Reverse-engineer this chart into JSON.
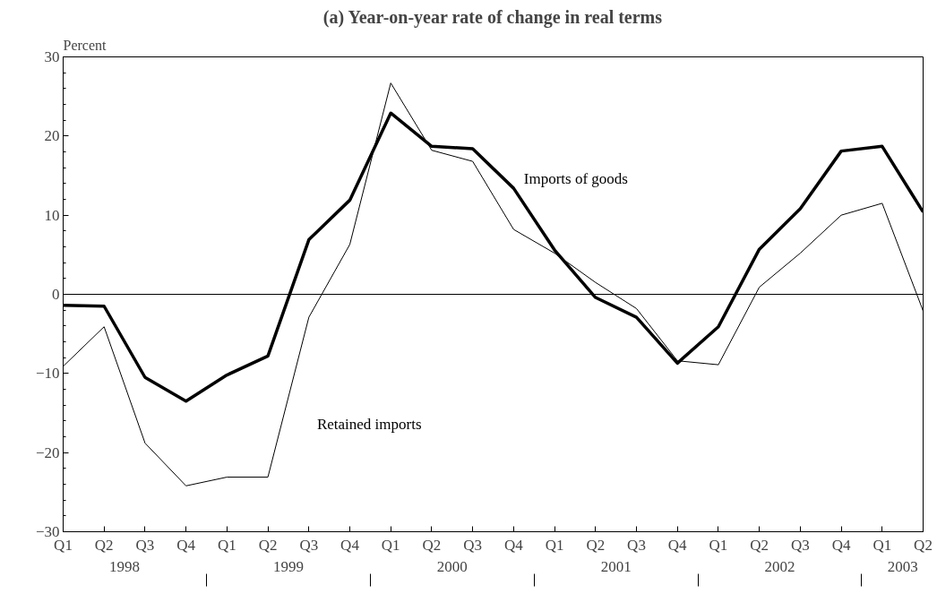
{
  "chart_data": {
    "type": "line",
    "title": "(a) Year-on-year rate of change in real terms",
    "ylabel": "Percent",
    "categories": [
      "Q1",
      "Q2",
      "Q3",
      "Q4",
      "Q1",
      "Q2",
      "Q3",
      "Q4",
      "Q1",
      "Q2",
      "Q3",
      "Q4",
      "Q1",
      "Q2",
      "Q3",
      "Q4",
      "Q1",
      "Q2",
      "Q3",
      "Q4",
      "Q1",
      "Q2"
    ],
    "annotations": [
      "1998",
      "1999",
      "2000",
      "2001",
      "2002",
      "2003"
    ],
    "series": [
      {
        "name": "Imports of goods",
        "color": "#000000",
        "values": [
          -1.4,
          -1.5,
          -10.5,
          -13.5,
          -10.2,
          -7.8,
          6.9,
          11.9,
          22.9,
          18.7,
          18.4,
          13.4,
          5.6,
          -0.4,
          -2.9,
          -8.7,
          -4.1,
          5.7,
          10.8,
          18.1,
          18.7,
          10.4
        ]
      },
      {
        "name": "Retained imports",
        "color": "#000000",
        "values": [
          -9.1,
          -4.1,
          -18.8,
          -24.2,
          -23.1,
          -23.1,
          -2.9,
          6.3,
          26.7,
          18.2,
          16.8,
          8.2,
          5.2,
          1.5,
          -1.8,
          -8.4,
          -8.9,
          0.9,
          5.2,
          10.0,
          11.5,
          -2.1
        ]
      }
    ],
    "ylim": [
      -30,
      30
    ],
    "yticks": [
      -30,
      -20,
      -10,
      0,
      10,
      20,
      30
    ],
    "ref_lines": [
      {
        "axis": "y",
        "value": 0,
        "label": null
      }
    ],
    "grid": false,
    "marker": "none",
    "line_style": "solid"
  }
}
